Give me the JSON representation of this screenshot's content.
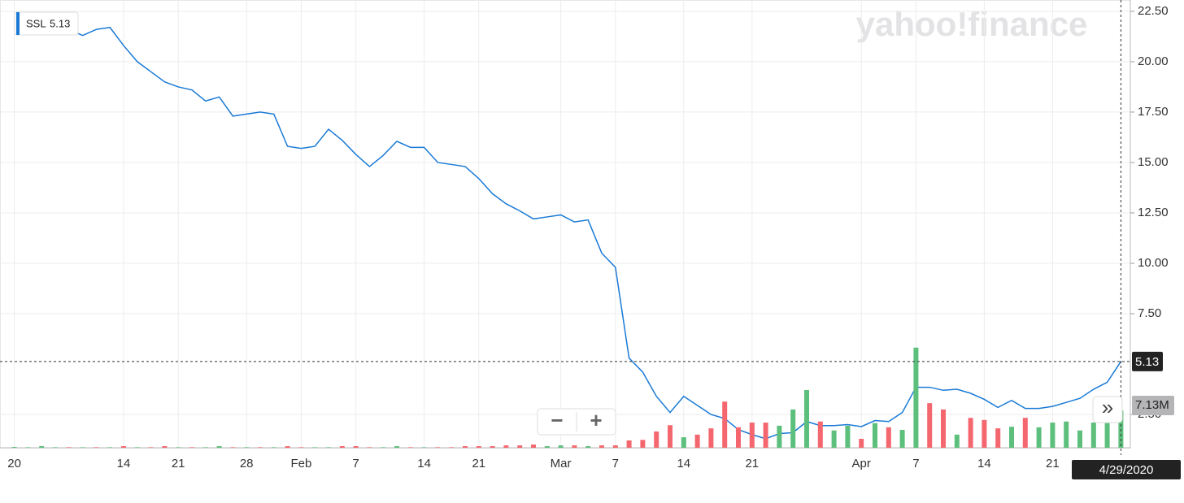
{
  "chart_data": {
    "type": "line",
    "categories": [
      "20",
      null,
      null,
      null,
      null,
      null,
      null,
      null,
      "14",
      null,
      null,
      null,
      "21",
      null,
      null,
      null,
      null,
      "28",
      null,
      null,
      null,
      "Feb",
      null,
      null,
      null,
      "7",
      null,
      null,
      null,
      null,
      "14",
      null,
      null,
      null,
      "21",
      null,
      null,
      null,
      null,
      null,
      "Mar",
      null,
      null,
      null,
      "7",
      null,
      null,
      null,
      null,
      "14",
      null,
      null,
      null,
      null,
      "21",
      null,
      null,
      null,
      null,
      null,
      null,
      null,
      "Apr",
      null,
      null,
      null,
      "7",
      null,
      null,
      null,
      null,
      "14",
      null,
      null,
      null,
      null,
      "21",
      null,
      null,
      null,
      null,
      null
    ],
    "series": [
      {
        "name": "SSL",
        "color": "#1a7ad6",
        "values": [
          21.6,
          21.6,
          21.6,
          21.5,
          21.6,
          21.3,
          21.6,
          21.7,
          20.8,
          20.0,
          19.5,
          19.0,
          18.75,
          18.6,
          18.05,
          18.25,
          17.3,
          17.4,
          17.5,
          17.4,
          15.8,
          15.7,
          15.8,
          16.65,
          16.1,
          15.4,
          14.8,
          15.35,
          16.05,
          15.75,
          15.75,
          15.0,
          14.9,
          14.8,
          14.2,
          13.45,
          12.95,
          12.6,
          12.2,
          12.3,
          12.4,
          12.05,
          12.15,
          10.5,
          9.8,
          5.3,
          4.6,
          3.4,
          2.6,
          3.4,
          2.95,
          2.5,
          2.3,
          1.75,
          1.5,
          1.3,
          1.55,
          1.6,
          2.15,
          1.95,
          1.95,
          2.0,
          1.9,
          2.2,
          2.15,
          2.6,
          3.85,
          3.85,
          3.7,
          3.75,
          3.55,
          3.25,
          2.85,
          3.2,
          2.8,
          2.8,
          2.9,
          3.1,
          3.3,
          3.75,
          4.1,
          5.13
        ]
      },
      {
        "axis": "y2",
        "type": "bar",
        "colors": [
          "#5cbf7c",
          "#5cbf7c",
          "#5cbf7c",
          "#5cbf7c",
          "#f4676f",
          "#5cbf7c",
          "#f4676f",
          "#5cbf7c",
          "#f4676f",
          "#5cbf7c",
          "#f4676f",
          "#f4676f",
          "#5cbf7c",
          "#f4676f",
          "#5cbf7c",
          "#5cbf7c",
          "#f4676f",
          "#5cbf7c",
          "#f4676f",
          "#5cbf7c",
          "#f4676f",
          "#f4676f",
          "#5cbf7c",
          "#5cbf7c",
          "#f4676f",
          "#f4676f",
          "#f4676f",
          "#5cbf7c",
          "#5cbf7c",
          "#f4676f",
          "#5cbf7c",
          "#f4676f",
          "#f4676f",
          "#f4676f",
          "#f4676f",
          "#f4676f",
          "#f4676f",
          "#f4676f",
          "#f4676f",
          "#5cbf7c",
          "#5cbf7c",
          "#f4676f",
          "#5cbf7c",
          "#f4676f",
          "#f4676f",
          "#f4676f",
          "#f4676f",
          "#f4676f",
          "#f4676f",
          "#5cbf7c",
          "#f4676f",
          "#f4676f",
          "#f4676f",
          "#f4676f",
          "#f4676f",
          "#f4676f",
          "#5cbf7c",
          "#5cbf7c",
          "#5cbf7c",
          "#f4676f",
          "#5cbf7c",
          "#5cbf7c",
          "#f4676f",
          "#5cbf7c",
          "#f4676f",
          "#5cbf7c",
          "#5cbf7c",
          "#f4676f",
          "#f4676f",
          "#5cbf7c",
          "#f4676f",
          "#f4676f",
          "#f4676f",
          "#5cbf7c",
          "#f4676f",
          "#5cbf7c",
          "#5cbf7c",
          "#5cbf7c",
          "#5cbf7c",
          "#5cbf7c",
          "#5cbf7c",
          "#5cbf7c"
        ],
        "values": [
          0.15,
          0.1,
          0.3,
          0.1,
          0.1,
          0.1,
          0.1,
          0.1,
          0.3,
          0.1,
          0.1,
          0.3,
          0.1,
          0.1,
          0.1,
          0.3,
          0.1,
          0.1,
          0.1,
          0.1,
          0.3,
          0.1,
          0.1,
          0.1,
          0.3,
          0.3,
          0.1,
          0.1,
          0.3,
          0.1,
          0.1,
          0.1,
          0.1,
          0.3,
          0.3,
          0.3,
          0.45,
          0.45,
          0.6,
          0.3,
          0.45,
          0.45,
          0.3,
          0.45,
          0.45,
          1.4,
          1.5,
          3.1,
          4.3,
          2.0,
          2.5,
          3.7,
          8.8,
          3.9,
          4.8,
          4.8,
          4.2,
          7.3,
          11.0,
          5.0,
          3.3,
          4.2,
          1.7,
          4.7,
          3.9,
          3.4,
          19.1,
          8.5,
          7.3,
          2.5,
          5.7,
          5.3,
          3.7,
          4.0,
          5.7,
          3.9,
          4.8,
          5.0,
          3.3,
          4.8,
          4.7,
          7.13
        ],
        "value_labels": [
          null,
          null,
          null,
          null,
          null,
          null,
          null,
          null,
          null,
          null,
          null,
          null,
          null,
          null,
          null,
          null,
          null,
          null,
          null,
          null,
          null,
          null,
          null,
          null,
          null,
          null,
          null,
          null,
          null,
          null,
          null,
          null,
          null,
          null,
          null,
          null,
          null,
          null,
          null,
          null,
          null,
          null,
          null,
          null,
          null,
          null,
          null,
          null,
          null,
          null,
          null,
          null,
          null,
          null,
          null,
          null,
          null,
          null,
          null,
          null,
          null,
          null,
          null,
          null,
          null,
          null,
          null,
          null,
          null,
          null,
          null,
          null,
          null,
          null,
          null,
          null,
          null,
          null,
          null,
          null,
          null,
          "7.13M"
        ]
      }
    ],
    "ylim": [
      0.85,
      23.06
    ],
    "yticks": [
      {
        "value": 2.5,
        "label": "2.50"
      },
      {
        "value": 7.5,
        "label": "7.50"
      },
      {
        "value": 10,
        "label": "10.00"
      },
      {
        "value": 12.5,
        "label": "12.50"
      },
      {
        "value": 15,
        "label": "15.00"
      },
      {
        "value": 17.5,
        "label": "17.50"
      },
      {
        "value": 20,
        "label": "20.00"
      },
      {
        "value": 22.5,
        "label": "22.50"
      }
    ],
    "y2lim": [
      0,
      85.4
    ],
    "grid": true,
    "crosshair_label": "4/29/2020"
  },
  "ui": {
    "logo": "yahoo!finance",
    "zoom_out": "−",
    "zoom_in": "+",
    "expand": "»"
  }
}
